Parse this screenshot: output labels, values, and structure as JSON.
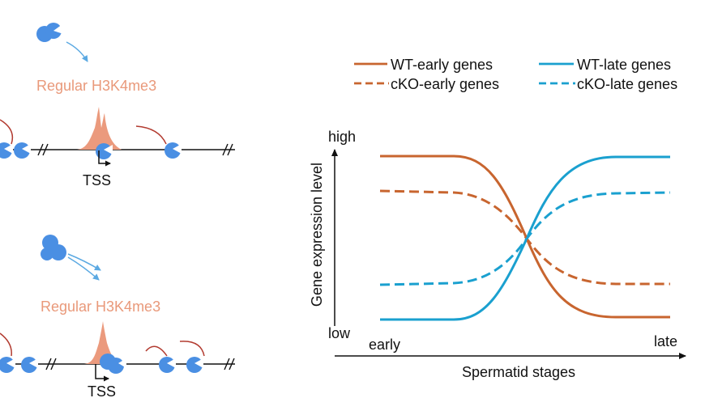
{
  "left_panel": {
    "top": {
      "mark_label": "Regular H3K4me3",
      "tss_label": "TSS"
    },
    "bottom": {
      "mark_label": "Regular H3K4me3",
      "tss_label": "TSS"
    }
  },
  "chart": {
    "legend": {
      "wt_early": "WT-early genes",
      "wt_late": "WT-late genes",
      "cko_early": "cKO-early genes",
      "cko_late": "cKO-late genes"
    },
    "y_axis": {
      "label": "Gene expression level",
      "high": "high",
      "low": "low"
    },
    "x_axis": {
      "label": "Spermatid stages",
      "start": "early",
      "end": "late"
    }
  },
  "colors": {
    "orange": "#C8652F",
    "blue": "#1AA0CF",
    "peak": "#EB9A7D",
    "protein": "#4A8FE3",
    "tether": "#B23B30",
    "arrow": "#5BA9E2"
  }
}
